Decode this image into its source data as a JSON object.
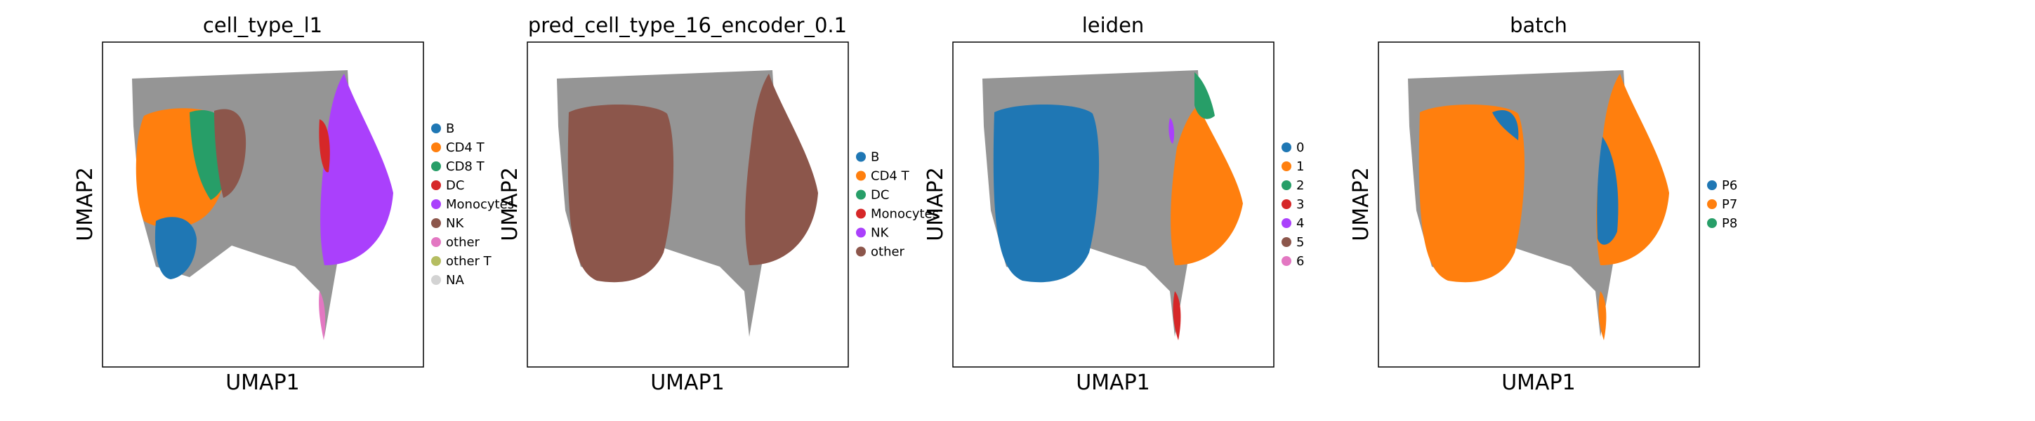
{
  "chart_data": [
    {
      "type": "scatter",
      "title": "cell_type_l1",
      "xlabel": "UMAP1",
      "ylabel": "UMAP2",
      "legend_position": "right",
      "series": [
        {
          "name": "B",
          "color": "#1f77b4"
        },
        {
          "name": "CD4 T",
          "color": "#ff7f0e"
        },
        {
          "name": "CD8 T",
          "color": "#279e68"
        },
        {
          "name": "DC",
          "color": "#d62728"
        },
        {
          "name": "Monocytes",
          "color": "#aa40fc"
        },
        {
          "name": "NK",
          "color": "#8c564b"
        },
        {
          "name": "other",
          "color": "#e377c2"
        },
        {
          "name": "other T",
          "color": "#b5bd61"
        },
        {
          "name": "NA",
          "color": "#d3d3d3"
        }
      ]
    },
    {
      "type": "scatter",
      "title": "pred_cell_type_16_encoder_0.1",
      "xlabel": "UMAP1",
      "ylabel": "UMAP2",
      "legend_position": "right",
      "series": [
        {
          "name": "B",
          "color": "#1f77b4"
        },
        {
          "name": "CD4 T",
          "color": "#ff7f0e"
        },
        {
          "name": "DC",
          "color": "#279e68"
        },
        {
          "name": "Monocytes",
          "color": "#d62728"
        },
        {
          "name": "NK",
          "color": "#aa40fc"
        },
        {
          "name": "other",
          "color": "#8c564b"
        }
      ]
    },
    {
      "type": "scatter",
      "title": "leiden",
      "xlabel": "UMAP1",
      "ylabel": "UMAP2",
      "legend_position": "right",
      "series": [
        {
          "name": "0",
          "color": "#1f77b4"
        },
        {
          "name": "1",
          "color": "#ff7f0e"
        },
        {
          "name": "2",
          "color": "#279e68"
        },
        {
          "name": "3",
          "color": "#d62728"
        },
        {
          "name": "4",
          "color": "#aa40fc"
        },
        {
          "name": "5",
          "color": "#8c564b"
        },
        {
          "name": "6",
          "color": "#e377c2"
        }
      ]
    },
    {
      "type": "scatter",
      "title": "batch",
      "xlabel": "UMAP1",
      "ylabel": "UMAP2",
      "legend_position": "right",
      "series": [
        {
          "name": "P6",
          "color": "#1f77b4"
        },
        {
          "name": "P7",
          "color": "#ff7f0e"
        },
        {
          "name": "P8",
          "color": "#279e68"
        }
      ]
    }
  ]
}
